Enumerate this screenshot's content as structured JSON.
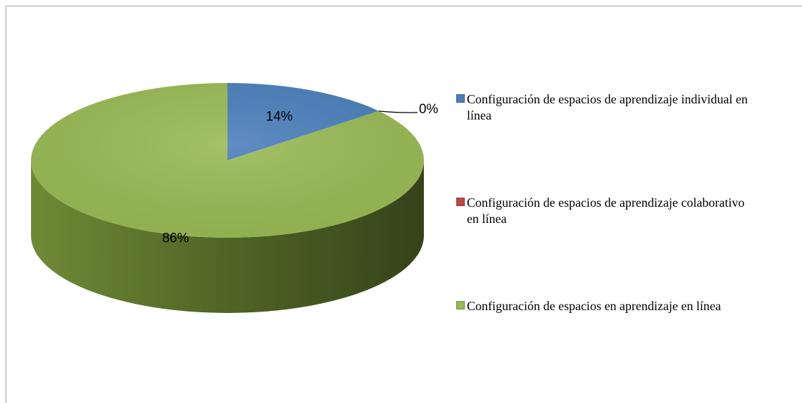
{
  "chart_data": {
    "type": "pie",
    "categories": [
      "Configuración de espacios de aprendizaje individual en línea",
      "Configuración de espacios de aprendizaje colaborativo en línea",
      "Configuración de espacios en aprendizaje en línea"
    ],
    "values": [
      14,
      0,
      86
    ],
    "value_labels": [
      "14%",
      "0%",
      "86%"
    ],
    "colors": [
      "#4a7ebb",
      "#be4b48",
      "#98b954"
    ],
    "legend": "right"
  }
}
